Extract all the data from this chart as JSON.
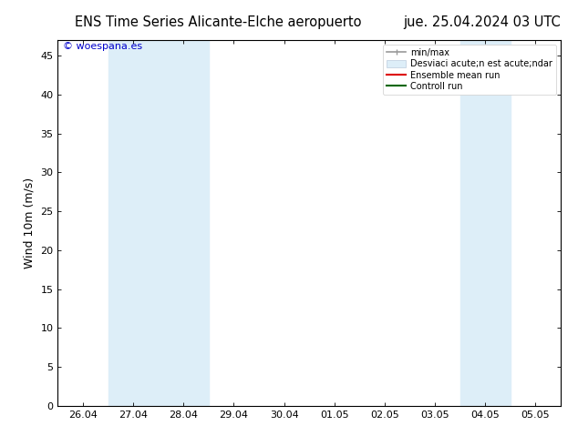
{
  "title_left": "ENS Time Series Alicante-Elche aeropuerto",
  "title_right": "jue. 25.04.2024 03 UTC",
  "ylabel": "Wind 10m (m/s)",
  "ylim": [
    0,
    47
  ],
  "yticks": [
    0,
    5,
    10,
    15,
    20,
    25,
    30,
    35,
    40,
    45
  ],
  "xtick_labels": [
    "26.04",
    "27.04",
    "28.04",
    "29.04",
    "30.04",
    "01.05",
    "02.05",
    "03.05",
    "04.05",
    "05.05"
  ],
  "shaded_bands": [
    {
      "xmin": 1,
      "xmax": 3,
      "color": "#ddeef8"
    },
    {
      "xmin": 8,
      "xmax": 9,
      "color": "#ddeef8"
    }
  ],
  "watermark_text": "© woespana.es",
  "watermark_color": "#0000cc",
  "bg_color": "#ffffff",
  "plot_bg_color": "#ffffff",
  "outer_bg_color": "#e8e8e8",
  "legend_entries": [
    {
      "label": "min/max",
      "color": "#999999",
      "lw": 1.2
    },
    {
      "label": "Desviaci acute;n est acute;ndar",
      "color": "#ccddee",
      "lw": 8
    },
    {
      "label": "Ensemble mean run",
      "color": "#dd0000",
      "lw": 1.5
    },
    {
      "label": "Controll run",
      "color": "#006600",
      "lw": 1.5
    }
  ],
  "title_fontsize": 10.5,
  "axis_fontsize": 9,
  "tick_fontsize": 8
}
